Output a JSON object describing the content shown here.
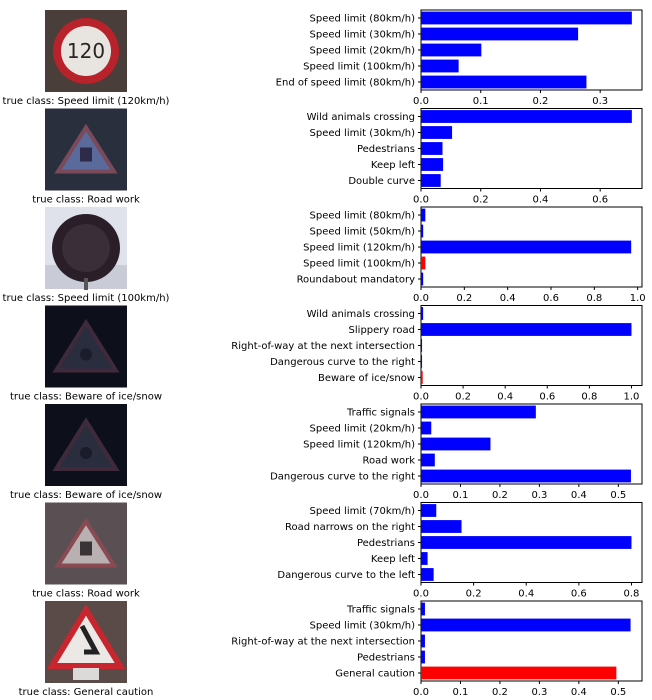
{
  "chart_data": [
    {
      "type": "bar",
      "orientation": "horizontal",
      "caption": "true class: Speed limit (120km/h)",
      "image_icon": "speed-limit-120-sign-icon",
      "categories": [
        "Speed limit (80km/h)",
        "Speed limit (30km/h)",
        "Speed limit (20km/h)",
        "Speed limit (100km/h)",
        "End of speed limit (80km/h)"
      ],
      "values": [
        0.353,
        0.263,
        0.101,
        0.063,
        0.277
      ],
      "colors": [
        "#0000ff",
        "#0000ff",
        "#0000ff",
        "#0000ff",
        "#0000ff"
      ],
      "xlim": [
        0,
        0.37
      ],
      "xticks": [
        0.0,
        0.1,
        0.2,
        0.3
      ],
      "xtick_labels": [
        "0.0",
        "0.1",
        "0.2",
        "0.3"
      ]
    },
    {
      "type": "bar",
      "orientation": "horizontal",
      "caption": "true class: Road work",
      "image_icon": "road-work-sign-icon",
      "categories": [
        "Wild animals crossing",
        "Speed limit (30km/h)",
        "Pedestrians",
        "Keep left",
        "Double curve"
      ],
      "values": [
        0.706,
        0.104,
        0.072,
        0.074,
        0.066
      ],
      "colors": [
        "#0000ff",
        "#0000ff",
        "#0000ff",
        "#0000ff",
        "#0000ff"
      ],
      "xlim": [
        0,
        0.74
      ],
      "xticks": [
        0.0,
        0.2,
        0.4,
        0.6
      ],
      "xtick_labels": [
        "0.0",
        "0.2",
        "0.4",
        "0.6"
      ]
    },
    {
      "type": "bar",
      "orientation": "horizontal",
      "caption": "true class: Speed limit (100km/h)",
      "image_icon": "speed-limit-100-sign-icon",
      "categories": [
        "Speed limit (80km/h)",
        "Speed limit (50km/h)",
        "Speed limit (120km/h)",
        "Speed limit (100km/h)",
        "Roundabout mandatory"
      ],
      "values": [
        0.02,
        0.01,
        0.97,
        0.02,
        0.01
      ],
      "colors": [
        "#0000ff",
        "#0000ff",
        "#0000ff",
        "#ff0000",
        "#0000ff"
      ],
      "xlim": [
        0,
        1.02
      ],
      "xticks": [
        0.0,
        0.2,
        0.4,
        0.6,
        0.8,
        1.0
      ],
      "xtick_labels": [
        "0.0",
        "0.2",
        "0.4",
        "0.6",
        "0.8",
        "1.0"
      ]
    },
    {
      "type": "bar",
      "orientation": "horizontal",
      "caption": "true class: Beware of ice/snow",
      "image_icon": "beware-of-ice-snow-sign-icon",
      "categories": [
        "Wild animals crossing",
        "Slippery road",
        "Right-of-way at the next intersection",
        "Dangerous curve to the right",
        "Beware of ice/snow"
      ],
      "values": [
        0.01,
        1.0,
        0.005,
        0.005,
        0.008
      ],
      "colors": [
        "#0000ff",
        "#0000ff",
        "#0000ff",
        "#0000ff",
        "#ff0000"
      ],
      "xlim": [
        0,
        1.05
      ],
      "xticks": [
        0.0,
        0.2,
        0.4,
        0.6,
        0.8,
        1.0
      ],
      "xtick_labels": [
        "0.0",
        "0.2",
        "0.4",
        "0.6",
        "0.8",
        "1.0"
      ]
    },
    {
      "type": "bar",
      "orientation": "horizontal",
      "caption": "true class: Beware of ice/snow",
      "image_icon": "beware-of-ice-snow-sign-icon",
      "categories": [
        "Traffic signals",
        "Speed limit (20km/h)",
        "Speed limit (120km/h)",
        "Road work",
        "Dangerous curve to the right"
      ],
      "values": [
        0.291,
        0.026,
        0.176,
        0.035,
        0.532
      ],
      "colors": [
        "#0000ff",
        "#0000ff",
        "#0000ff",
        "#0000ff",
        "#0000ff"
      ],
      "xlim": [
        0,
        0.56
      ],
      "xticks": [
        0.0,
        0.1,
        0.2,
        0.3,
        0.4,
        0.5
      ],
      "xtick_labels": [
        "0.0",
        "0.1",
        "0.2",
        "0.3",
        "0.4",
        "0.5"
      ]
    },
    {
      "type": "bar",
      "orientation": "horizontal",
      "caption": "true class: Road work",
      "image_icon": "road-work-sign-icon",
      "categories": [
        "Speed limit (70km/h)",
        "Road narrows on the right",
        "Pedestrians",
        "Keep left",
        "Dangerous curve to the left"
      ],
      "values": [
        0.058,
        0.154,
        0.8,
        0.025,
        0.048
      ],
      "colors": [
        "#0000ff",
        "#0000ff",
        "#0000ff",
        "#0000ff",
        "#0000ff"
      ],
      "xlim": [
        0,
        0.84
      ],
      "xticks": [
        0.0,
        0.2,
        0.4,
        0.6,
        0.8
      ],
      "xtick_labels": [
        "0.0",
        "0.2",
        "0.4",
        "0.6",
        "0.8"
      ]
    },
    {
      "type": "bar",
      "orientation": "horizontal",
      "caption": "true class: General caution",
      "image_icon": "general-caution-sign-icon",
      "categories": [
        "Traffic signals",
        "Speed limit (30km/h)",
        "Right-of-way at the next intersection",
        "Pedestrians",
        "General caution"
      ],
      "values": [
        0.01,
        0.531,
        0.01,
        0.01,
        0.495
      ],
      "colors": [
        "#0000ff",
        "#0000ff",
        "#0000ff",
        "#0000ff",
        "#ff0000"
      ],
      "xlim": [
        0,
        0.56
      ],
      "xticks": [
        0.0,
        0.1,
        0.2,
        0.3,
        0.4,
        0.5
      ],
      "xtick_labels": [
        "0.0",
        "0.1",
        "0.2",
        "0.3",
        "0.4",
        "0.5"
      ]
    }
  ]
}
